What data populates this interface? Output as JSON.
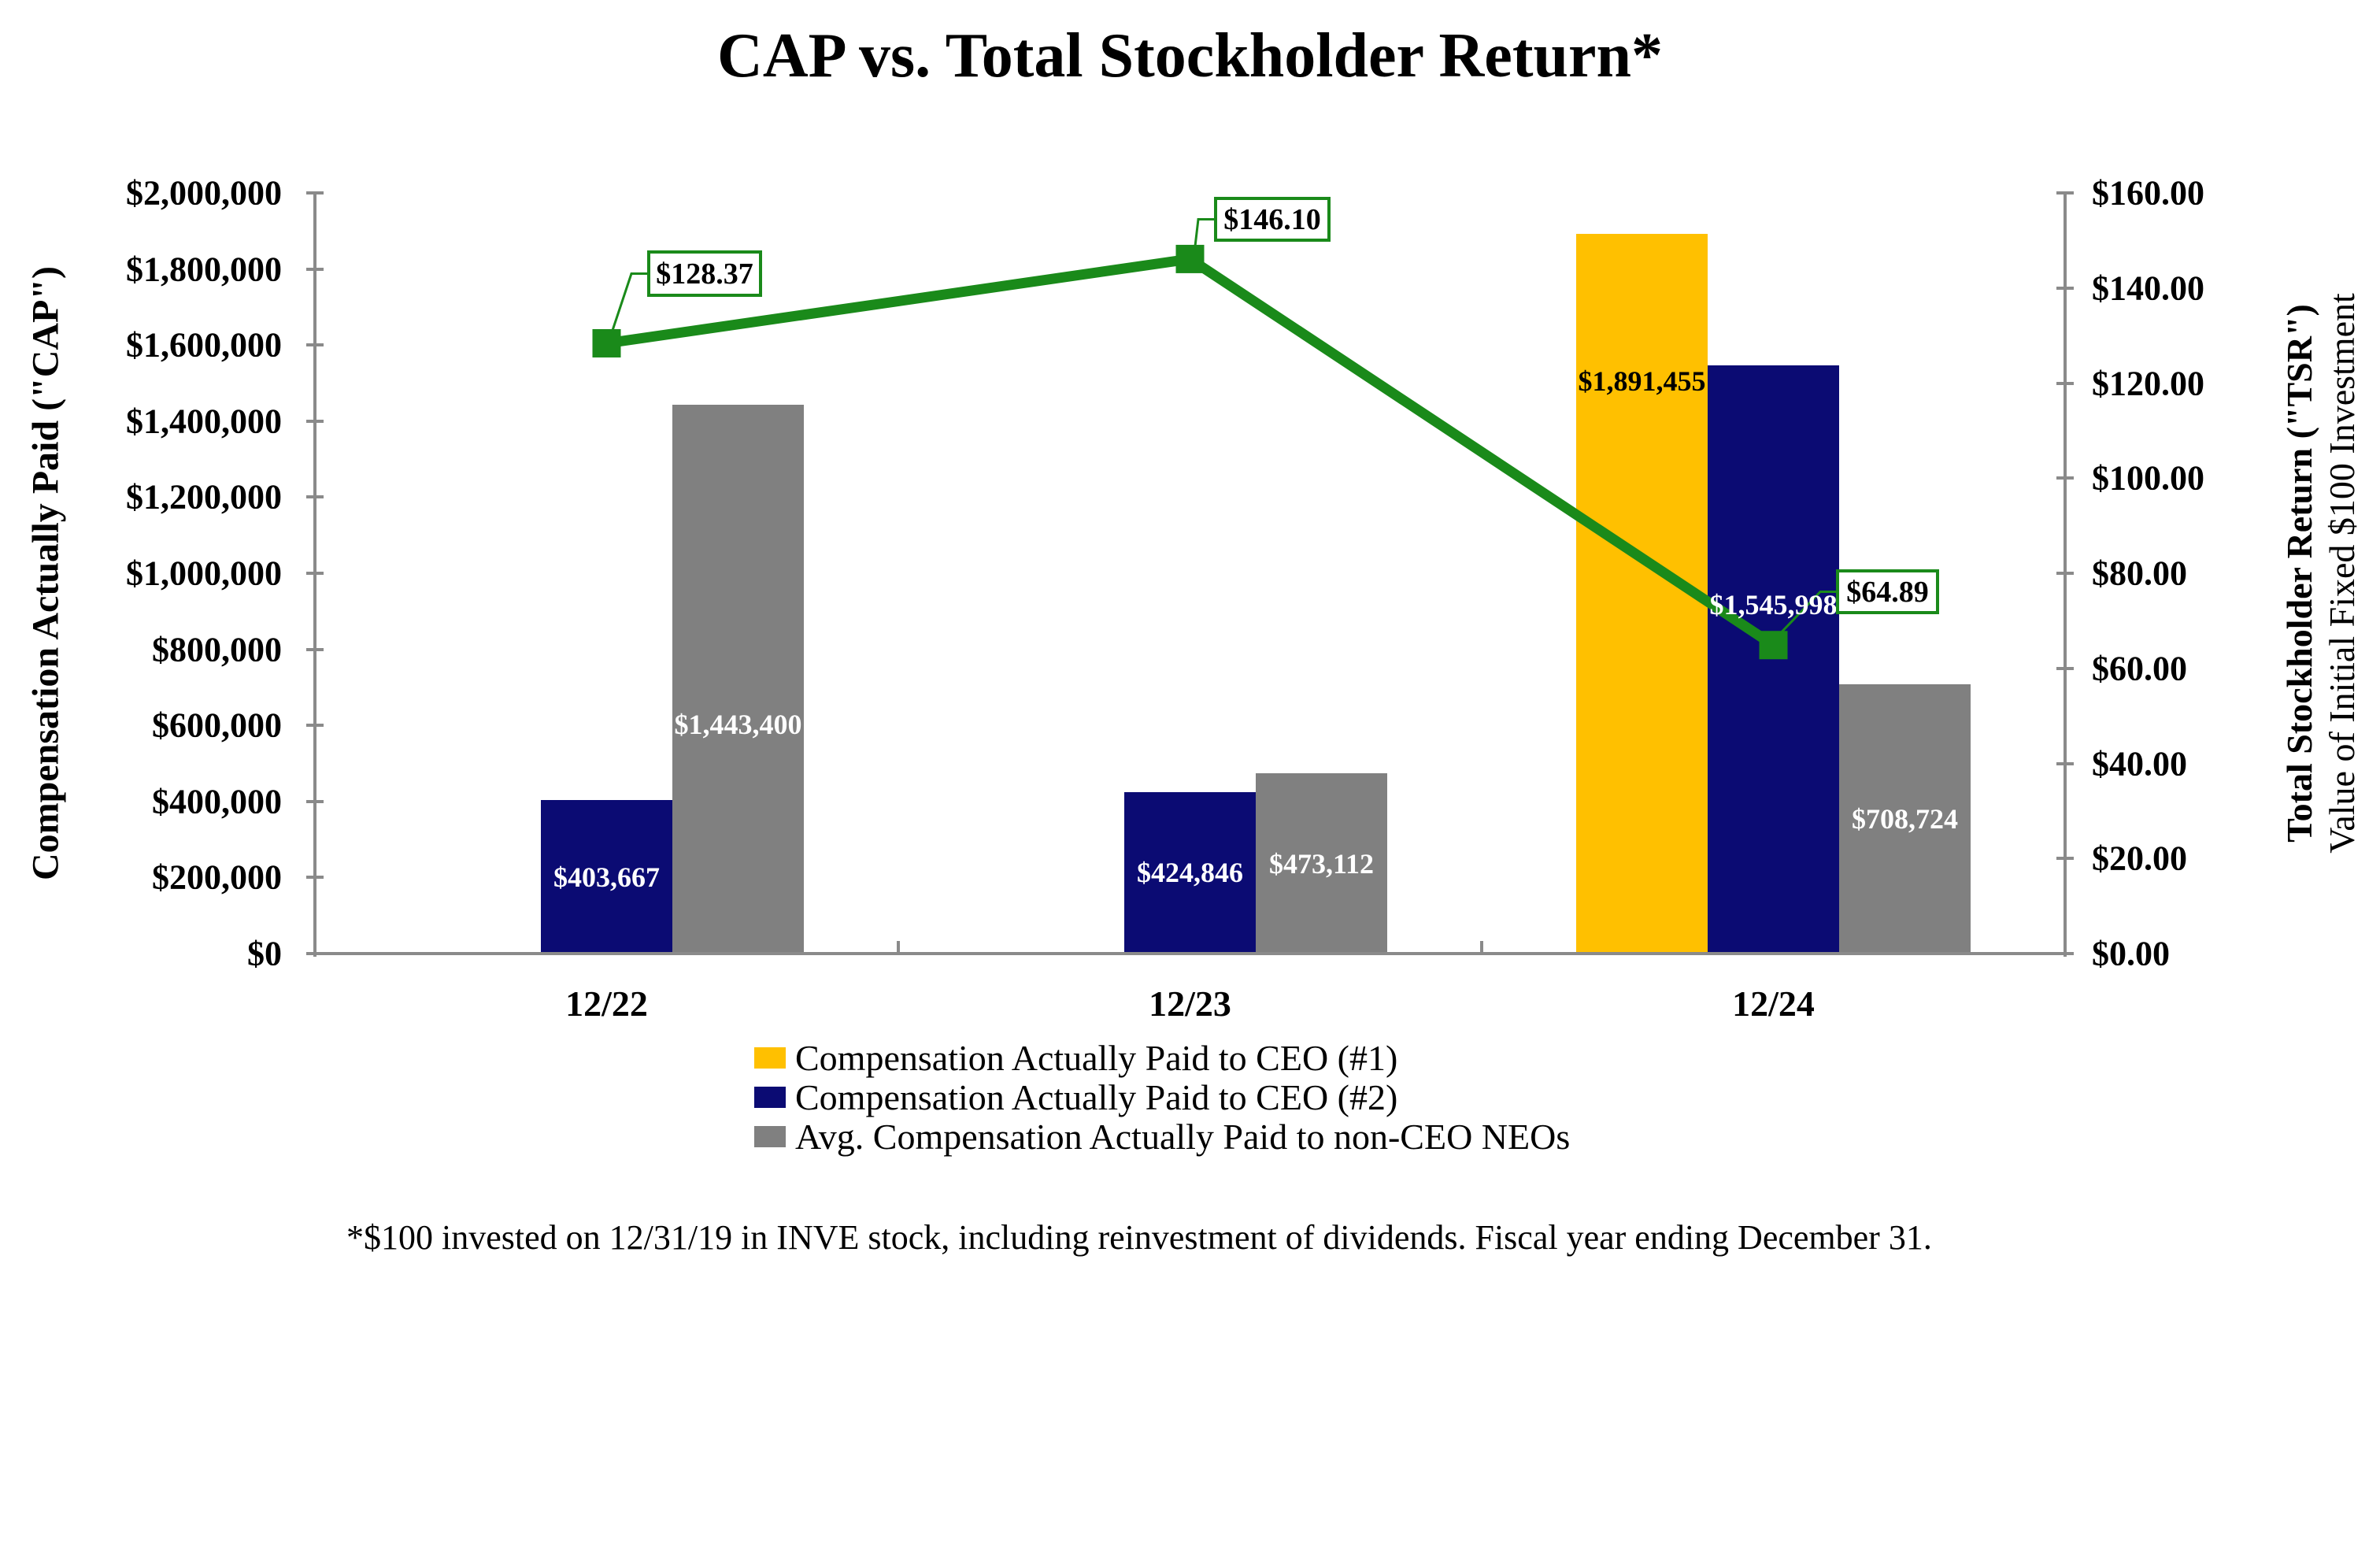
{
  "title": "CAP vs. Total Stockholder Return*",
  "footnote": "*$100 invested on 12/31/19 in INVE stock, including reinvestment of dividends. Fiscal year ending December 31.",
  "left_axis": {
    "title": "Compensation Actually Paid (\"CAP\")",
    "min": 0,
    "max": 2000000,
    "step": 200000,
    "tick_labels": [
      "$2,000,000",
      "$1,800,000",
      "$1,600,000",
      "$1,400,000",
      "$1,200,000",
      "$1,000,000",
      "$800,000",
      "$600,000",
      "$400,000",
      "$200,000",
      "$0"
    ]
  },
  "right_axis": {
    "title_line1": "Total Stockholder Return (\"TSR\")",
    "title_line2": "Value of Initial Fixed $100 Investment",
    "min": 0,
    "max": 160,
    "step": 20,
    "tick_labels": [
      "$160.00",
      "$140.00",
      "$120.00",
      "$100.00",
      "$80.00",
      "$60.00",
      "$40.00",
      "$20.00",
      "$0.00"
    ]
  },
  "chart_data": {
    "type": "bar",
    "categories": [
      "12/22",
      "12/23",
      "12/24"
    ],
    "series": [
      {
        "name": "Compensation Actually Paid to CEO (#1)",
        "color": "#FFC000",
        "values": [
          null,
          null,
          1891455
        ],
        "labels": [
          null,
          null,
          "$1,891,455"
        ],
        "label_color": "#000000"
      },
      {
        "name": "Compensation Actually Paid to CEO (#2)",
        "color": "#0B0B73",
        "values": [
          403667,
          424846,
          1545998
        ],
        "labels": [
          "$403,667",
          "$424,846",
          "$1,545,998"
        ],
        "label_color": "#FFFFFF"
      },
      {
        "name": "Avg. Compensation Actually Paid to non-CEO NEOs",
        "color": "#808080",
        "values": [
          1443400,
          473112,
          708724
        ],
        "labels": [
          "$1,443,400",
          "$473,112",
          "$708,724"
        ],
        "label_color": "#FFFFFF"
      }
    ],
    "line_series": {
      "name": "Total Stockholder Return (TSR)",
      "color": "#1A8A1A",
      "values": [
        128.37,
        146.1,
        64.89
      ],
      "labels": [
        "$128.37",
        "$146.10",
        "$64.89"
      ]
    },
    "ylim_left": [
      0,
      2000000
    ],
    "ylim_right": [
      0,
      160
    ],
    "grid": false,
    "legend_position": "bottom"
  }
}
